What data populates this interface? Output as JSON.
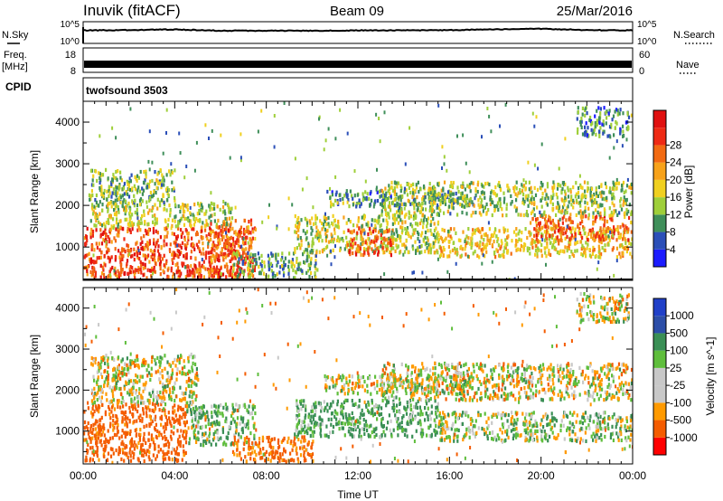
{
  "header": {
    "station": "Inuvik (fitACF)",
    "beam": "Beam 09",
    "date": "25/Mar/2016"
  },
  "colors": {
    "power_scale": [
      "#1c1cff",
      "#2b4fb8",
      "#3f8f5a",
      "#9fcf3a",
      "#f0d020",
      "#f7a21a",
      "#f26a12",
      "#ee2a14",
      "#e01010"
    ],
    "velocity_scale": [
      "#ff0000",
      "#f45c00",
      "#ff9a00",
      "#c8c8c8",
      "#c8c8c8",
      "#5fbe3c",
      "#3a8f55",
      "#2c4ea8",
      "#2040c8"
    ]
  },
  "chart_data": [
    {
      "type": "line",
      "panel": "noise",
      "y_left_label": "N.Sky",
      "y_left_ticks": [
        "10^5",
        "10^0"
      ],
      "y_right_label": "N.Search",
      "y_right_ticks": [
        "10^5",
        "10^0"
      ],
      "x_hours": [
        0,
        2,
        4,
        6,
        8,
        10,
        12,
        14,
        16,
        18,
        20,
        22,
        24
      ],
      "sky_log10": [
        4.0,
        4.1,
        4.3,
        3.9,
        3.9,
        3.9,
        4.0,
        4.0,
        4.1,
        4.3,
        4.5,
        4.1,
        4.0
      ],
      "search_log10": [
        4.0,
        4.0,
        4.0,
        4.0,
        4.0,
        4.0,
        4.0,
        4.0,
        4.0,
        4.0,
        4.0,
        4.0,
        4.0
      ]
    },
    {
      "type": "bar",
      "panel": "frequency",
      "y_left_label": "Freq.",
      "y_left_unit": "[MHz]",
      "y_left_ticks": [
        8,
        18
      ],
      "y_right_label": "Nave",
      "y_right_ticks": [
        0,
        60
      ],
      "freq_mhz_range": [
        10,
        12
      ]
    },
    {
      "type": "table",
      "panel": "cpid",
      "label": "CPID",
      "value": "twofsound 3503"
    },
    {
      "type": "heatmap",
      "panel": "power",
      "ylabel": "Slant Range [km]",
      "yticks": [
        1000,
        2000,
        3000,
        4000
      ],
      "ylim": [
        200,
        4500
      ],
      "colorbar_label": "Power [dB]",
      "colorbar_ticks": [
        4,
        8,
        12,
        16,
        20,
        24,
        28
      ],
      "colorbar_range": [
        0,
        32
      ],
      "regions": [
        {
          "t": [
            0.0,
            7.5
          ],
          "r": [
            300,
            1500
          ],
          "value": 25
        },
        {
          "t": [
            0.3,
            6.5
          ],
          "r": [
            1500,
            2100
          ],
          "value": 14
        },
        {
          "t": [
            0.2,
            4.0
          ],
          "r": [
            2100,
            2900
          ],
          "value": 12
        },
        {
          "t": [
            5.5,
            7.3
          ],
          "r": [
            700,
            1700
          ],
          "value": 23
        },
        {
          "t": [
            4.0,
            6.5
          ],
          "r": [
            300,
            600
          ],
          "value": 25
        },
        {
          "t": [
            6.5,
            10.2
          ],
          "r": [
            300,
            900
          ],
          "value": 10
        },
        {
          "t": [
            9.2,
            15.5
          ],
          "r": [
            900,
            1800
          ],
          "value": 14
        },
        {
          "t": [
            11.5,
            13.5
          ],
          "r": [
            850,
            1500
          ],
          "value": 24
        },
        {
          "t": [
            10.5,
            17.0
          ],
          "r": [
            2000,
            2400
          ],
          "value": 9
        },
        {
          "t": [
            15.5,
            24.0
          ],
          "r": [
            800,
            1500
          ],
          "value": 17
        },
        {
          "t": [
            19.5,
            24.0
          ],
          "r": [
            1200,
            1800
          ],
          "value": 23
        },
        {
          "t": [
            13.0,
            24.0
          ],
          "r": [
            1800,
            2600
          ],
          "value": 13
        },
        {
          "t": [
            21.5,
            23.8
          ],
          "r": [
            3700,
            4400
          ],
          "value": 8
        }
      ]
    },
    {
      "type": "heatmap",
      "panel": "velocity",
      "ylabel": "Slant Range [km]",
      "yticks": [
        1000,
        2000,
        3000,
        4000
      ],
      "ylim": [
        200,
        4500
      ],
      "xlabel": "Time UT",
      "xticks": [
        "00:00",
        "04:00",
        "08:00",
        "12:00",
        "16:00",
        "20:00",
        "00:00"
      ],
      "colorbar_label": "Velocity [m s^-1]",
      "colorbar_ticks": [
        1000,
        500,
        100,
        25,
        -25,
        -100,
        -500,
        -1000
      ],
      "regions": [
        {
          "t": [
            0.0,
            4.5
          ],
          "r": [
            300,
            1700
          ],
          "value": -200
        },
        {
          "t": [
            0.3,
            5.0
          ],
          "r": [
            1700,
            2900
          ],
          "value": 0
        },
        {
          "t": [
            4.5,
            7.5
          ],
          "r": [
            700,
            1700
          ],
          "value": 80
        },
        {
          "t": [
            6.5,
            10.0
          ],
          "r": [
            300,
            900
          ],
          "value": -150
        },
        {
          "t": [
            9.2,
            15.5
          ],
          "r": [
            900,
            1800
          ],
          "value": 120
        },
        {
          "t": [
            10.5,
            17.0
          ],
          "r": [
            1950,
            2400
          ],
          "value": 0
        },
        {
          "t": [
            13.0,
            24.0
          ],
          "r": [
            1800,
            2700
          ],
          "value": 0
        },
        {
          "t": [
            15.5,
            24.0
          ],
          "r": [
            800,
            1500
          ],
          "value": 40
        },
        {
          "t": [
            21.5,
            23.8
          ],
          "r": [
            3700,
            4400
          ],
          "value": 0
        }
      ]
    }
  ]
}
